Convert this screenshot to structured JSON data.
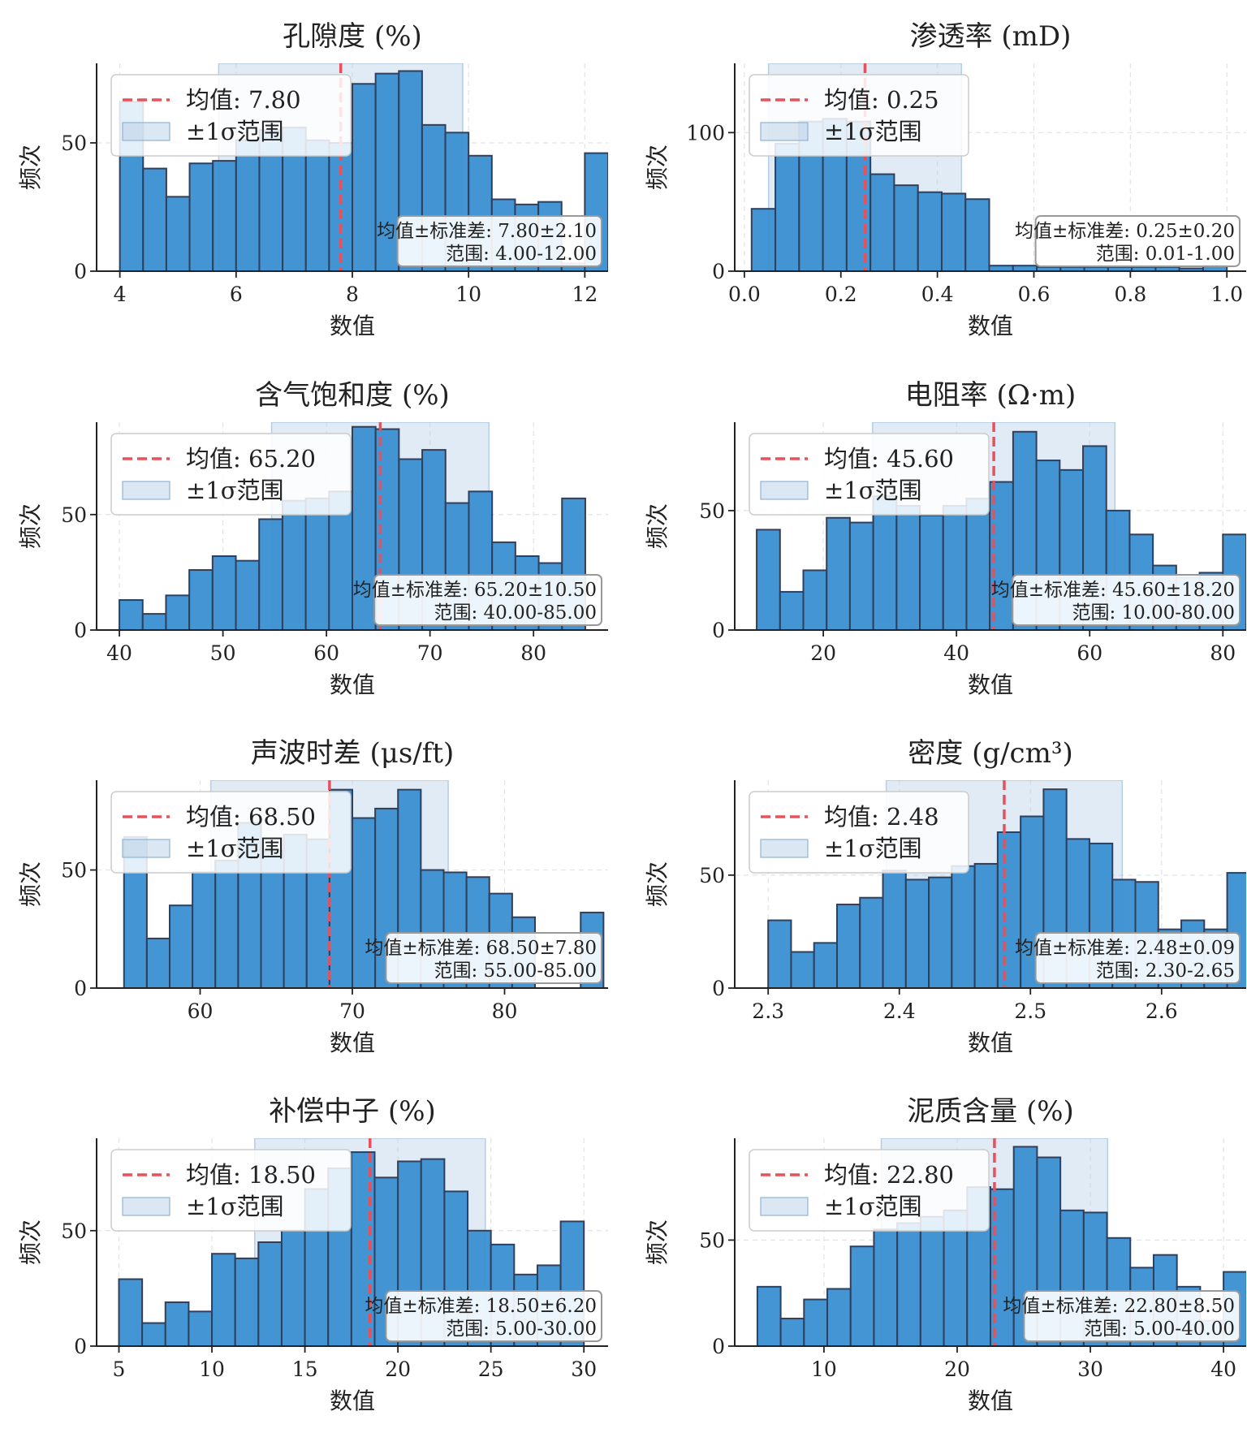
{
  "chart_data": [
    {
      "type": "bar",
      "title": "孔隙度 (%)",
      "xlabel": "数值",
      "ylabel": "频次",
      "xlim": [
        3.6,
        12.4
      ],
      "ylim": [
        0,
        81
      ],
      "xticks": [
        {
          "v": 4,
          "label": "4"
        },
        {
          "v": 6,
          "label": "6"
        },
        {
          "v": 8,
          "label": "8"
        },
        {
          "v": 10,
          "label": "10"
        },
        {
          "v": 12,
          "label": "12"
        }
      ],
      "yticks": [
        {
          "v": 0,
          "label": "0"
        },
        {
          "v": 50,
          "label": "50"
        }
      ],
      "bins": {
        "start": 4,
        "width": 0.4,
        "counts": [
          66,
          40,
          29,
          42,
          43,
          51,
          55,
          56,
          51,
          50,
          73,
          77,
          78,
          57,
          54,
          45,
          28,
          26,
          27,
          3,
          46
        ]
      },
      "mean": 7.8,
      "std": 2.1,
      "legend": {
        "mean_label": "均值: 7.80",
        "sigma_label": "±1σ范围"
      },
      "stats": {
        "line1": "均值±标准差: 7.80±2.10",
        "line2": "范围: 4.00-12.00"
      }
    },
    {
      "type": "bar",
      "title": "渗透率 (mD)",
      "xlabel": "数值",
      "ylabel": "频次",
      "xlim": [
        -0.02,
        1.04
      ],
      "ylim": [
        0,
        150
      ],
      "xticks": [
        {
          "v": 0,
          "label": "0.0"
        },
        {
          "v": 0.2,
          "label": "0.2"
        },
        {
          "v": 0.4,
          "label": "0.4"
        },
        {
          "v": 0.6,
          "label": "0.6"
        },
        {
          "v": 0.8,
          "label": "0.8"
        },
        {
          "v": 1.0,
          "label": "1.0"
        }
      ],
      "yticks": [
        {
          "v": 0,
          "label": "0"
        },
        {
          "v": 100,
          "label": "100"
        }
      ],
      "bins": {
        "start": 0.015,
        "width": 0.04925,
        "counts": [
          45,
          92,
          108,
          110,
          108,
          70,
          62,
          57,
          56,
          52,
          4,
          4,
          3,
          3,
          3,
          3,
          3,
          3,
          2,
          4
        ]
      },
      "mean": 0.25,
      "std": 0.2,
      "legend": {
        "mean_label": "均值: 0.25",
        "sigma_label": "±1σ范围"
      },
      "stats": {
        "line1": "均值±标准差: 0.25±0.20",
        "line2": "范围: 0.01-1.00"
      }
    },
    {
      "type": "bar",
      "title": "含气饱和度 (%)",
      "xlabel": "数值",
      "ylabel": "频次",
      "xlim": [
        37.8,
        87.2
      ],
      "ylim": [
        0,
        90
      ],
      "xticks": [
        {
          "v": 40,
          "label": "40"
        },
        {
          "v": 50,
          "label": "50"
        },
        {
          "v": 60,
          "label": "60"
        },
        {
          "v": 70,
          "label": "70"
        },
        {
          "v": 80,
          "label": "80"
        }
      ],
      "yticks": [
        {
          "v": 0,
          "label": "0"
        },
        {
          "v": 50,
          "label": "50"
        }
      ],
      "bins": {
        "start": 40,
        "width": 2.25,
        "counts": [
          13,
          7,
          15,
          26,
          32,
          30,
          48,
          56,
          57,
          60,
          88,
          87,
          74,
          78,
          55,
          60,
          38,
          32,
          29,
          57
        ]
      },
      "mean": 65.2,
      "std": 10.5,
      "legend": {
        "mean_label": "均值: 65.20",
        "sigma_label": "±1σ范围"
      },
      "stats": {
        "line1": "均值±标准差: 65.20±10.50",
        "line2": "范围: 40.00-85.00"
      }
    },
    {
      "type": "bar",
      "title": "电阻率 (Ω·m)",
      "xlabel": "数值",
      "ylabel": "频次",
      "xlim": [
        6.7,
        83.5
      ],
      "ylim": [
        0,
        87
      ],
      "xticks": [
        {
          "v": 20,
          "label": "20"
        },
        {
          "v": 40,
          "label": "40"
        },
        {
          "v": 60,
          "label": "60"
        },
        {
          "v": 80,
          "label": "80"
        }
      ],
      "yticks": [
        {
          "v": 0,
          "label": "0"
        },
        {
          "v": 50,
          "label": "50"
        }
      ],
      "bins": {
        "start": 10,
        "width": 3.5,
        "counts": [
          42,
          16,
          25,
          47,
          45,
          56,
          52,
          48,
          52,
          55,
          62,
          83,
          71,
          67,
          77,
          50,
          40,
          27,
          22,
          24,
          40
        ]
      },
      "mean": 45.6,
      "std": 18.2,
      "legend": {
        "mean_label": "均值: 45.60",
        "sigma_label": "±1σ范围"
      },
      "stats": {
        "line1": "均值±标准差: 45.60±18.20",
        "line2": "范围: 10.00-80.00"
      }
    },
    {
      "type": "bar",
      "title": "声波时差 (μs/ft)",
      "xlabel": "数值",
      "ylabel": "频次",
      "xlim": [
        53.2,
        86.8
      ],
      "ylim": [
        0,
        88
      ],
      "xticks": [
        {
          "v": 60,
          "label": "60"
        },
        {
          "v": 70,
          "label": "70"
        },
        {
          "v": 80,
          "label": "80"
        }
      ],
      "yticks": [
        {
          "v": 0,
          "label": "0"
        },
        {
          "v": 50,
          "label": "50"
        }
      ],
      "bins": {
        "start": 55,
        "width": 1.5,
        "counts": [
          64,
          21,
          35,
          49,
          54,
          70,
          58,
          65,
          63,
          84,
          72,
          76,
          84,
          50,
          49,
          47,
          40,
          30,
          0,
          0,
          32
        ]
      },
      "mean": 68.5,
      "std": 7.8,
      "legend": {
        "mean_label": "均值: 68.50",
        "sigma_label": "±1σ范围"
      },
      "stats": {
        "line1": "均值±标准差: 68.50±7.80",
        "line2": "范围: 55.00-85.00"
      }
    },
    {
      "type": "bar",
      "title": "密度 (g/cm³)",
      "xlabel": "数值",
      "ylabel": "频次",
      "xlim": [
        2.2745,
        2.6645
      ],
      "ylim": [
        0,
        92
      ],
      "xticks": [
        {
          "v": 2.3,
          "label": "2.3"
        },
        {
          "v": 2.4,
          "label": "2.4"
        },
        {
          "v": 2.5,
          "label": "2.5"
        },
        {
          "v": 2.6,
          "label": "2.6"
        }
      ],
      "yticks": [
        {
          "v": 0,
          "label": "0"
        },
        {
          "v": 50,
          "label": "50"
        }
      ],
      "bins": {
        "start": 2.3,
        "width": 0.0175,
        "counts": [
          30,
          16,
          20,
          37,
          40,
          52,
          48,
          49,
          54,
          55,
          69,
          76,
          88,
          66,
          64,
          48,
          47,
          26,
          30,
          26,
          51
        ]
      },
      "mean": 2.48,
      "std": 0.09,
      "legend": {
        "mean_label": "均值: 2.48",
        "sigma_label": "±1σ范围"
      },
      "stats": {
        "line1": "均值±标准差: 2.48±0.09",
        "line2": "范围: 2.30-2.65"
      }
    },
    {
      "type": "bar",
      "title": "补偿中子 (%)",
      "xlabel": "数值",
      "ylabel": "频次",
      "xlim": [
        3.8,
        31.3
      ],
      "ylim": [
        0,
        90
      ],
      "xticks": [
        {
          "v": 5,
          "label": "5"
        },
        {
          "v": 10,
          "label": "10"
        },
        {
          "v": 15,
          "label": "15"
        },
        {
          "v": 20,
          "label": "20"
        },
        {
          "v": 25,
          "label": "25"
        },
        {
          "v": 30,
          "label": "30"
        }
      ],
      "yticks": [
        {
          "v": 0,
          "label": "0"
        },
        {
          "v": 50,
          "label": "50"
        }
      ],
      "bins": {
        "start": 5,
        "width": 1.25,
        "counts": [
          29,
          10,
          19,
          15,
          40,
          38,
          45,
          50,
          68,
          77,
          84,
          73,
          80,
          81,
          67,
          50,
          44,
          31,
          35,
          54
        ]
      },
      "mean": 18.5,
      "std": 6.2,
      "legend": {
        "mean_label": "均值: 18.50",
        "sigma_label": "±1σ范围"
      },
      "stats": {
        "line1": "均值±标准差: 18.50±6.20",
        "line2": "范围: 5.00-30.00"
      }
    },
    {
      "type": "bar",
      "title": "泥质含量 (%)",
      "xlabel": "数值",
      "ylabel": "频次",
      "xlim": [
        3.3,
        41.7
      ],
      "ylim": [
        0,
        98
      ],
      "xticks": [
        {
          "v": 10,
          "label": "10"
        },
        {
          "v": 20,
          "label": "20"
        },
        {
          "v": 30,
          "label": "30"
        },
        {
          "v": 40,
          "label": "40"
        }
      ],
      "yticks": [
        {
          "v": 0,
          "label": "0"
        },
        {
          "v": 50,
          "label": "50"
        }
      ],
      "bins": {
        "start": 5,
        "width": 1.75,
        "counts": [
          28,
          13,
          22,
          27,
          47,
          55,
          58,
          61,
          64,
          75,
          74,
          94,
          89,
          64,
          63,
          51,
          37,
          43,
          28,
          12,
          35
        ]
      },
      "mean": 22.8,
      "std": 8.5,
      "legend": {
        "mean_label": "均值: 22.80",
        "sigma_label": "±1σ范围"
      },
      "stats": {
        "line1": "均值±标准差: 22.80±8.50",
        "line2": "范围: 5.00-40.00"
      }
    }
  ],
  "colors": {
    "bar": "#3a8fd1",
    "bar_edge": "#2f3f5c",
    "mean": "#e8505b",
    "sigma": "#b8cfe6",
    "grid": "#e3e3e3"
  }
}
